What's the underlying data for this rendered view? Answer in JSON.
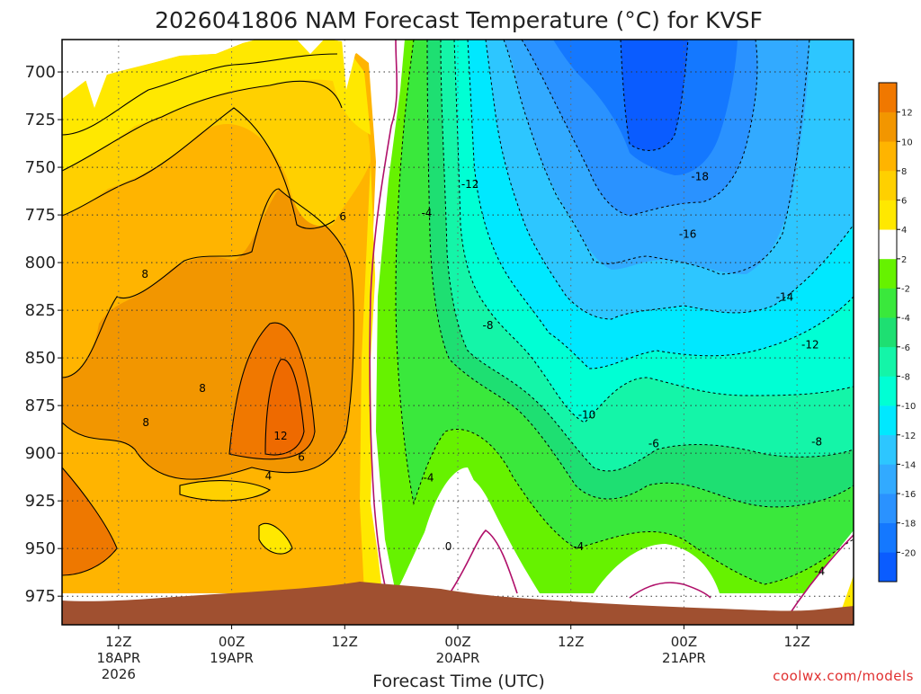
{
  "chart_data": {
    "type": "heatmap",
    "title": "2026041806 NAM Forecast Temperature (°C) for KVSF",
    "xlabel": "Forecast Time (UTC)",
    "ylabel": "",
    "y_ticks": [
      "700",
      "725",
      "750",
      "775",
      "800",
      "825",
      "850",
      "875",
      "900",
      "925",
      "950",
      "975"
    ],
    "y_range": [
      683,
      990
    ],
    "x_range_hours": [
      6,
      90
    ],
    "x_ticks": [
      {
        "h": 12,
        "label": [
          "12Z",
          "18APR",
          "2026"
        ]
      },
      {
        "h": 24,
        "label": [
          "00Z",
          "19APR"
        ]
      },
      {
        "h": 36,
        "label": [
          "12Z"
        ]
      },
      {
        "h": 48,
        "label": [
          "00Z",
          "20APR"
        ]
      },
      {
        "h": 60,
        "label": [
          "12Z"
        ]
      },
      {
        "h": 72,
        "label": [
          "00Z",
          "21APR"
        ]
      },
      {
        "h": 84,
        "label": [
          "12Z"
        ]
      }
    ],
    "grid": true,
    "colorbar": {
      "levels": [
        -22,
        -20,
        -18,
        -16,
        -14,
        -12,
        -10,
        -8,
        -6,
        -4,
        -2,
        2,
        4,
        6,
        8,
        10,
        12,
        14
      ],
      "labels": [
        "-20",
        "-18",
        "-16",
        "-14",
        "-12",
        "-10",
        "-8",
        "-6",
        "-4",
        "-2",
        "2",
        "4",
        "6",
        "8",
        "10",
        "12"
      ],
      "colors": [
        "#0a5cff",
        "#1478ff",
        "#2a92ff",
        "#32aaff",
        "#2dc6ff",
        "#00e8ff",
        "#00ffd4",
        "#14f5a8",
        "#1edf72",
        "#3ae83c",
        "#66f200",
        "#ffffff",
        "#ffe800",
        "#ffd000",
        "#ffb400",
        "#f29600",
        "#f07800"
      ]
    },
    "contour_labels": [
      {
        "h": 35.8,
        "p": 776,
        "text": "6"
      },
      {
        "h": 14.8,
        "p": 806,
        "text": "8"
      },
      {
        "h": 20.9,
        "p": 866,
        "text": "8"
      },
      {
        "h": 14.9,
        "p": 884,
        "text": "8"
      },
      {
        "h": 29.2,
        "p": 891,
        "text": "12"
      },
      {
        "h": 31.4,
        "p": 902,
        "text": "6"
      },
      {
        "h": 27.9,
        "p": 912,
        "text": "4"
      },
      {
        "h": 44.7,
        "p": 774,
        "text": "-4"
      },
      {
        "h": 44.9,
        "p": 913,
        "text": "-4"
      },
      {
        "h": 49.3,
        "p": 759,
        "text": "-12"
      },
      {
        "h": 51.2,
        "p": 833,
        "text": "-8"
      },
      {
        "h": 61.7,
        "p": 880,
        "text": "-10"
      },
      {
        "h": 68.8,
        "p": 895,
        "text": "-6"
      },
      {
        "h": 60.8,
        "p": 949,
        "text": "-4"
      },
      {
        "h": 47.0,
        "p": 949,
        "text": "0"
      },
      {
        "h": 73.7,
        "p": 755,
        "text": "-18"
      },
      {
        "h": 72.4,
        "p": 785,
        "text": "-16"
      },
      {
        "h": 82.7,
        "p": 818,
        "text": "-14"
      },
      {
        "h": 85.4,
        "p": 843,
        "text": "-12"
      },
      {
        "h": 86.1,
        "p": 894,
        "text": "-8"
      },
      {
        "h": 86.4,
        "p": 962,
        "text": "-4"
      }
    ],
    "terrain_color": "#a05030",
    "credit": "coolwx.com/models"
  }
}
